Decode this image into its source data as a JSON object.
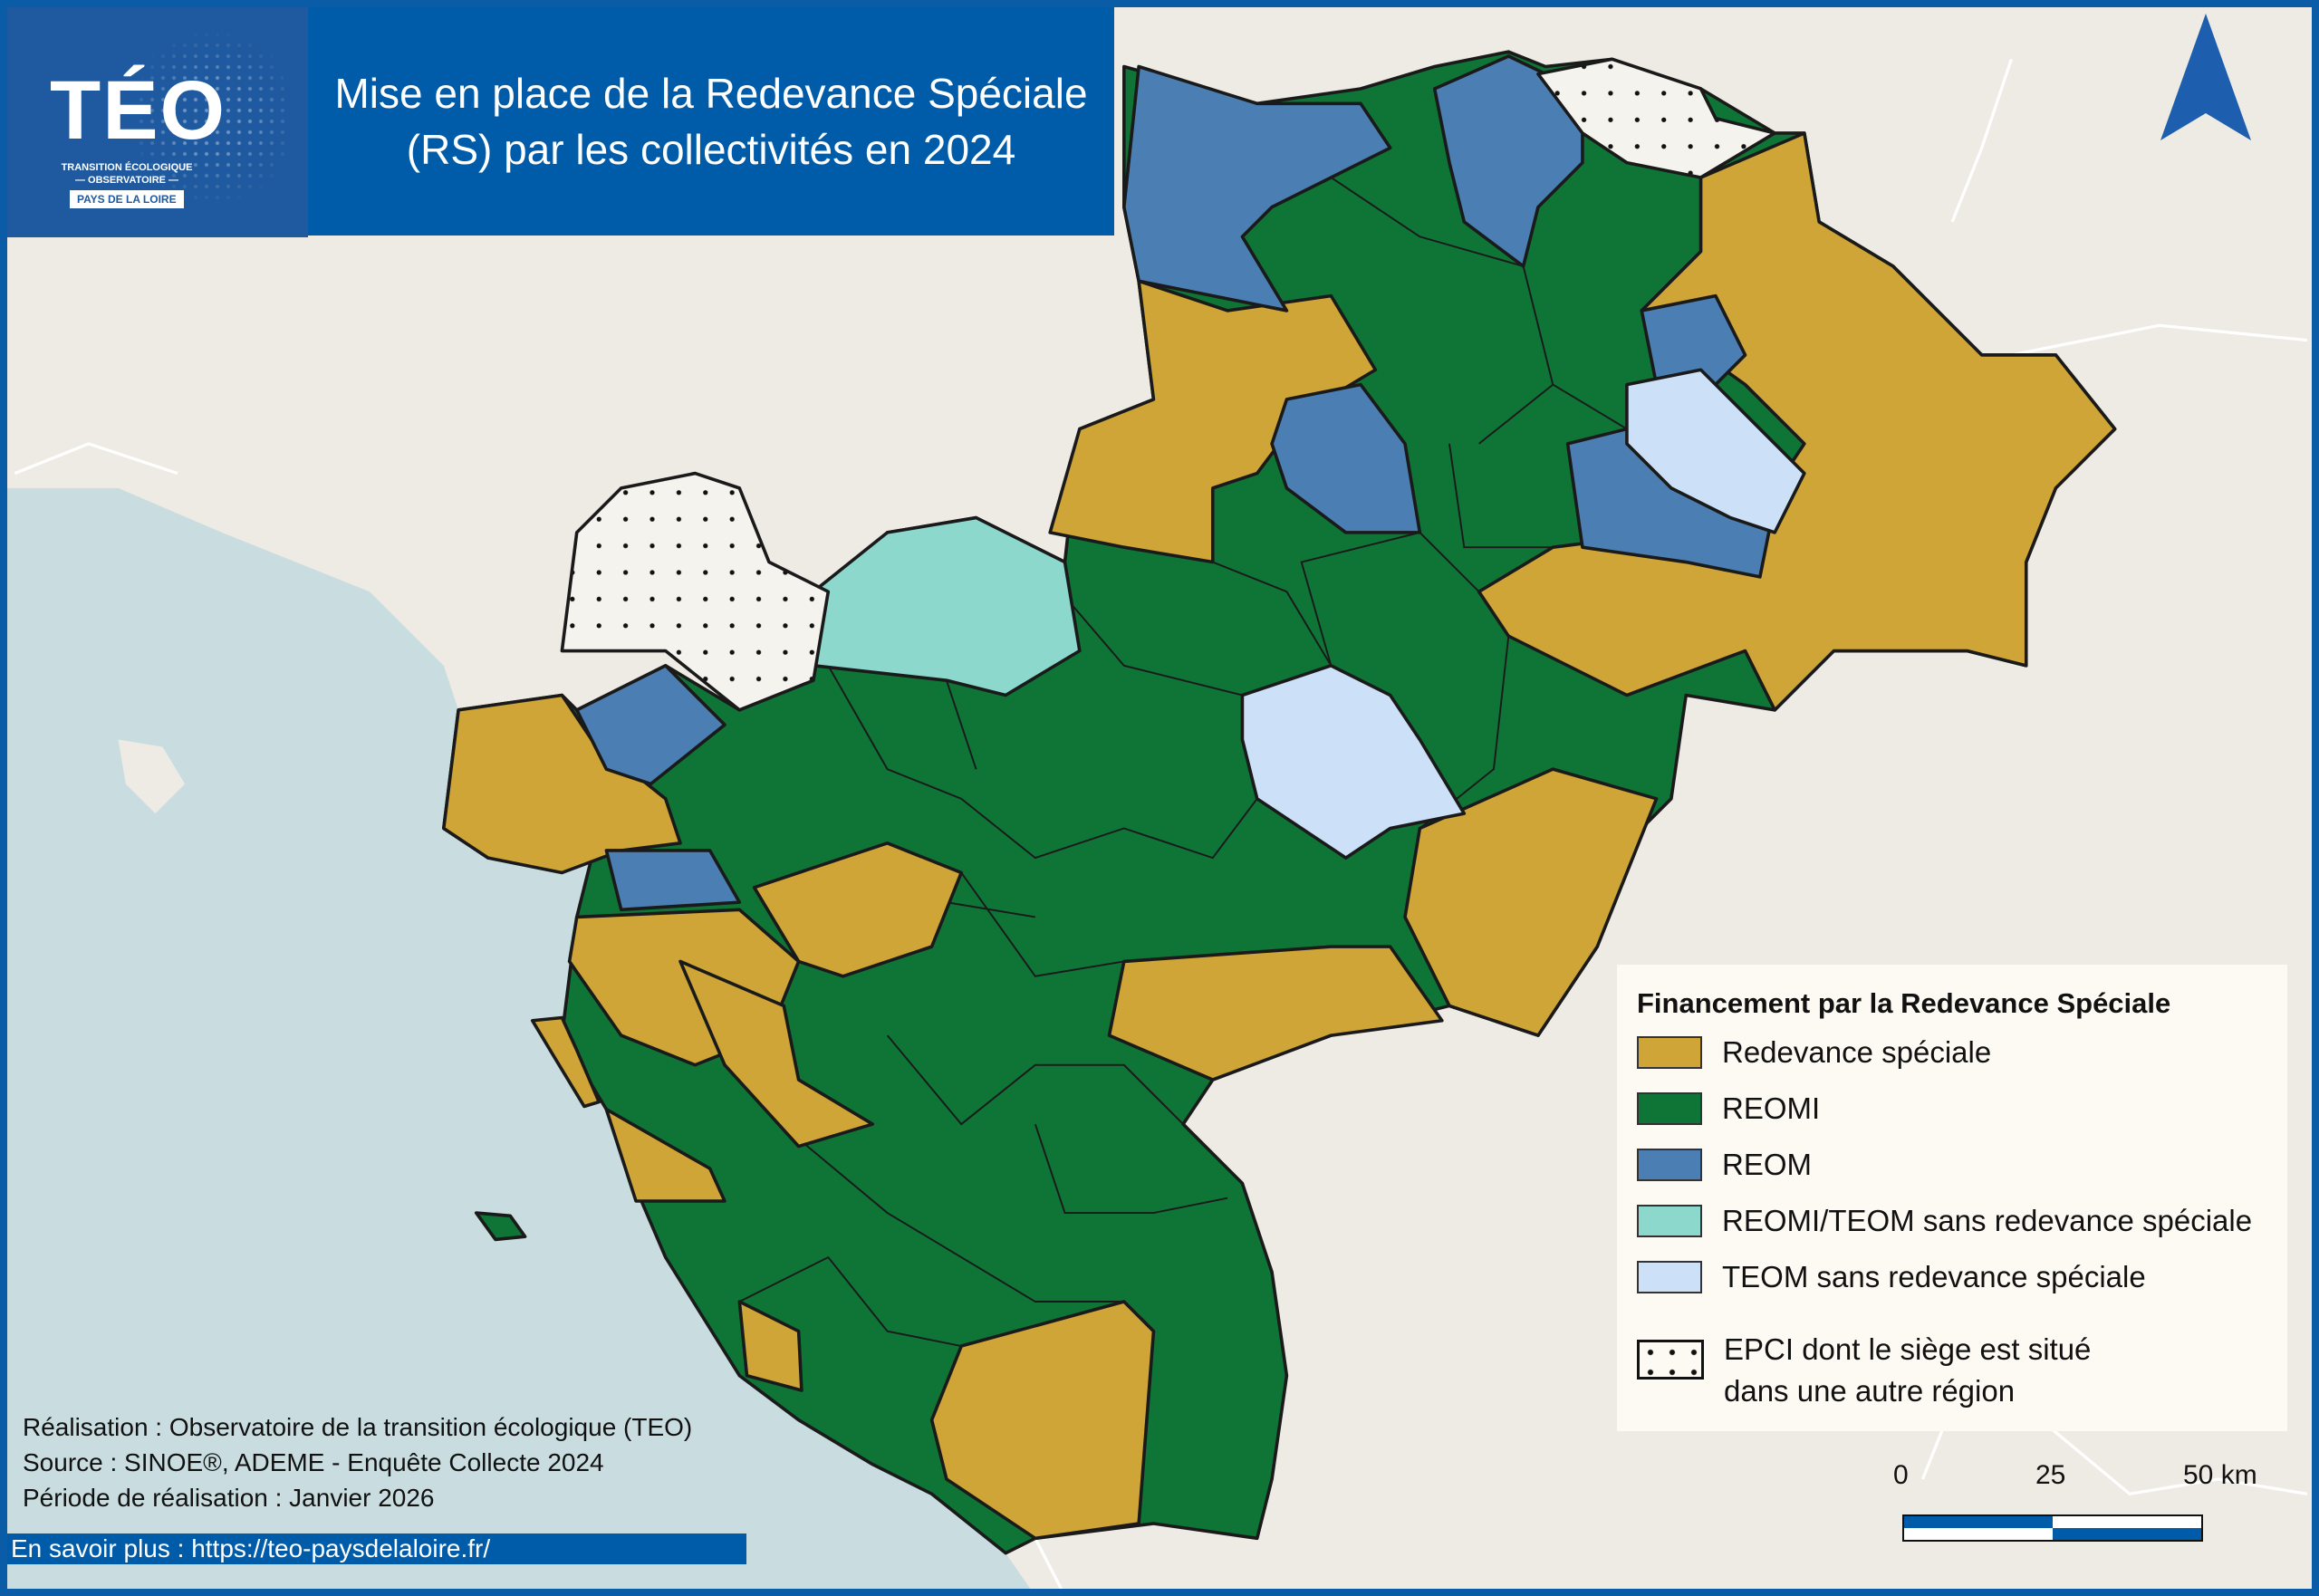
{
  "logo": {
    "name": "TÉO",
    "line1": "TRANSITION ÉCOLOGIQUE",
    "line2": "— OBSERVATOIRE —",
    "region": "PAYS DE LA LOIRE"
  },
  "title": {
    "line1": "Mise en place de la Redevance Spéciale",
    "line2": "(RS) par les collectivités en 2024"
  },
  "legend": {
    "title": "Financement par la Redevance Spéciale",
    "items": [
      {
        "label": "Redevance spéciale",
        "color": "#cea536"
      },
      {
        "label": "REOMI",
        "color": "#0e7537"
      },
      {
        "label": "REOM",
        "color": "#4b7fb3"
      },
      {
        "label": "REOMI/TEOM sans redevance spéciale",
        "color": "#8dd8cd"
      },
      {
        "label": "TEOM sans redevance spéciale",
        "color": "#cce0f8"
      }
    ],
    "pattern": {
      "line1": "EPCI dont le siège est situé",
      "line2": "dans une autre région"
    }
  },
  "scale": {
    "labels": [
      "0",
      "25",
      "50 km"
    ]
  },
  "credits": {
    "realisation": "Réalisation : Observatoire de la transition écologique (TEO)",
    "source": "Source : SINOE®, ADEME - Enquête Collecte 2024",
    "periode": "Période de réalisation : Janvier 2026"
  },
  "more": "En savoir plus : https://teo-paysdelaloire.fr/",
  "north_icon": "north-arrow-icon",
  "colors": {
    "sea": "#c9dde0",
    "land": "#eeebe5",
    "frame": "#0b5ca7"
  }
}
